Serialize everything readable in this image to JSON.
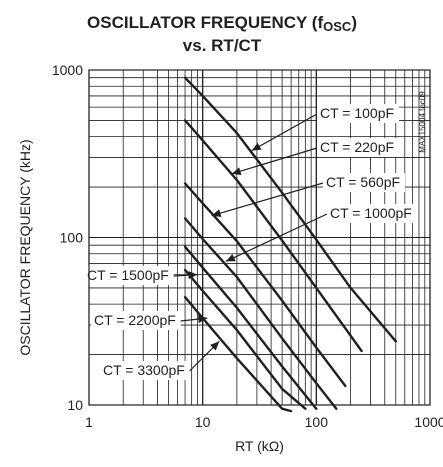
{
  "chart_data": {
    "type": "line",
    "title_line1": "OSCILLATOR FREQUENCY (f",
    "title_sub": "OSC",
    "title_line1_end": ")",
    "title_line2": "vs. RT/CT",
    "xlabel": "RT (kΩ)",
    "ylabel": "OSCILLATOR FREQUENCY (kHz)",
    "x_scale": "log",
    "y_scale": "log",
    "xlim": [
      1,
      1000
    ],
    "ylim": [
      10,
      1000
    ],
    "x_ticks": [
      {
        "value": 1,
        "label": "1"
      },
      {
        "value": 10,
        "label": "10"
      },
      {
        "value": 100,
        "label": "100"
      },
      {
        "value": 1000,
        "label": "1000"
      }
    ],
    "y_ticks": [
      {
        "value": 10,
        "label": "10"
      },
      {
        "value": 100,
        "label": "100"
      },
      {
        "value": 1000,
        "label": "1000"
      }
    ],
    "grid": true,
    "watermark": "MAX15004 toc09",
    "series": [
      {
        "name": "CT = 100pF",
        "x": [
          7,
          10,
          20,
          50,
          100,
          200,
          500
        ],
        "y": [
          900,
          700,
          420,
          185,
          97,
          50,
          24
        ]
      },
      {
        "name": "CT = 220pF",
        "x": [
          7,
          10,
          20,
          50,
          100,
          250
        ],
        "y": [
          500,
          380,
          220,
          96,
          50,
          21
        ]
      },
      {
        "name": "CT = 560pF",
        "x": [
          7,
          10,
          20,
          50,
          100,
          180
        ],
        "y": [
          210,
          160,
          95,
          42,
          22,
          13
        ]
      },
      {
        "name": "CT = 1000pF",
        "x": [
          7,
          10,
          20,
          50,
          100,
          150
        ],
        "y": [
          130,
          98,
          58,
          25,
          13.5,
          9.5
        ]
      },
      {
        "name": "CT = 1500pF",
        "x": [
          7,
          10,
          20,
          50,
          100
        ],
        "y": [
          88,
          66,
          38,
          17,
          9.5
        ]
      },
      {
        "name": "CT = 2200pF",
        "x": [
          7,
          10,
          20,
          50,
          80
        ],
        "y": [
          64,
          48,
          28,
          12.5,
          9.5
        ]
      },
      {
        "name": "CT = 3300pF",
        "x": [
          7,
          10,
          20,
          50,
          60
        ],
        "y": [
          44,
          33,
          19,
          9.5,
          9
        ]
      }
    ],
    "annotations": [
      {
        "text": "CT = 100pF",
        "anchor_x": 12,
        "anchor_y": 640,
        "arrow_to_x": 27,
        "arrow_to_y": 330
      },
      {
        "text": "CT = 220pF",
        "anchor_x": 18,
        "anchor_y": 390,
        "arrow_to_x": 18,
        "arrow_to_y": 240
      },
      {
        "text": "CT = 560pF",
        "anchor_x": 26,
        "anchor_y": 215,
        "arrow_to_x": 12,
        "arrow_to_y": 135
      },
      {
        "text": "CT = 1000pF",
        "anchor_x": 23,
        "anchor_y": 115,
        "arrow_to_x": 16,
        "arrow_to_y": 72
      },
      {
        "text": "CT = 1500pF",
        "anchor_x": 1.1,
        "anchor_y": 50,
        "arrow_to_x": 9,
        "arrow_to_y": 60
      },
      {
        "text": "CT = 2200pF",
        "anchor_x": 1.1,
        "anchor_y": 27,
        "arrow_to_x": 11,
        "arrow_to_y": 33
      },
      {
        "text": "CT = 3300pF",
        "anchor_x": 1.6,
        "anchor_y": 16,
        "arrow_to_x": 14,
        "arrow_to_y": 24
      }
    ],
    "annotation_label_positions": {
      "CT = 100pF": {
        "lx": 320,
        "ly": 118
      },
      "CT = 220pF": {
        "lx": 320,
        "ly": 152
      },
      "CT = 560pF": {
        "lx": 326,
        "ly": 187
      },
      "CT = 1000pF": {
        "lx": 330,
        "ly": 218
      },
      "CT = 1500pF": {
        "lx": 87,
        "ly": 280
      },
      "CT = 2200pF": {
        "lx": 94,
        "ly": 325
      },
      "CT = 3300pF": {
        "lx": 103,
        "ly": 375
      }
    }
  }
}
